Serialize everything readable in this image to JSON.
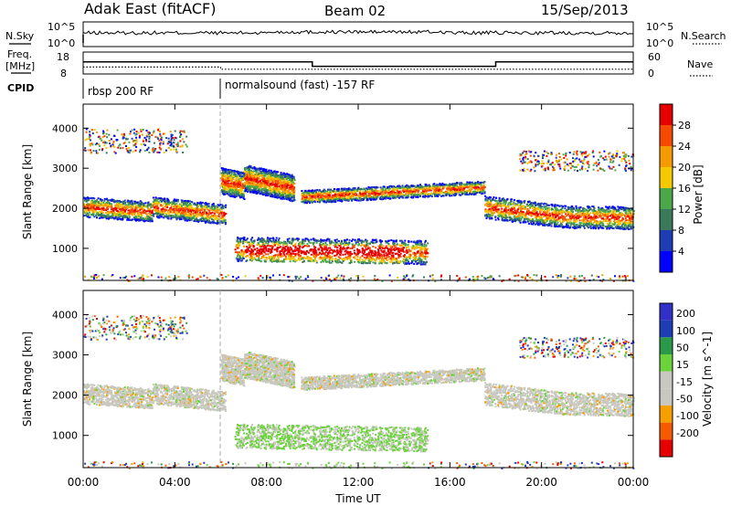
{
  "header": {
    "title": "Adak East (fitACF)",
    "beam": "Beam 02",
    "date": "15/Sep/2013"
  },
  "colors": {
    "power_scale": [
      "#0000ff",
      "#1e3cb4",
      "#3a7a5a",
      "#4aa84a",
      "#f5c800",
      "#f59a00",
      "#f54a00",
      "#e60000"
    ],
    "velocity_scale": [
      "#e60000",
      "#f55a00",
      "#f5a000",
      "#c8c8c0",
      "#c8c8c0",
      "#6ad23a",
      "#2a9a4a",
      "#1e3cb4",
      "#3030c8"
    ]
  },
  "chart_data": [
    {
      "type": "line",
      "name": "noise-panel",
      "left_label": "N.Sky",
      "right_label": "N.Search",
      "left_ticks": [
        "10^5",
        "10^0"
      ],
      "right_ticks": [
        "10^5",
        "10^0"
      ],
      "x_range_hours": [
        0,
        24
      ]
    },
    {
      "type": "line",
      "name": "frequency-panel",
      "left_label_1": "Freq.",
      "left_label_2": "[MHz]",
      "right_label": "Nave",
      "left_ticks": [
        18,
        8
      ],
      "right_ticks": [
        60,
        0
      ],
      "ylim_freq": [
        8,
        18
      ],
      "ylim_nave": [
        0,
        60
      ],
      "freq_steps": [
        {
          "t": 0.0,
          "v": 13.5
        },
        {
          "t": 10.0,
          "v": 13.5
        },
        {
          "t": 10.0,
          "v": 11.5
        },
        {
          "t": 18.0,
          "v": 11.5
        },
        {
          "t": 18.0,
          "v": 13.5
        },
        {
          "t": 24.0,
          "v": 13.5
        }
      ],
      "nave_steps": [
        {
          "t": 0.0,
          "v": 19
        },
        {
          "t": 6.0,
          "v": 19
        },
        {
          "t": 6.0,
          "v": 13
        },
        {
          "t": 24.0,
          "v": 13
        }
      ]
    },
    {
      "type": "table",
      "name": "cpid-panel",
      "label": "CPID",
      "segments": [
        {
          "start_h": 0,
          "end_h": 6,
          "text": "rbsp 200 RF"
        },
        {
          "start_h": 6,
          "end_h": 24,
          "text": "normalsound (fast) -157 RF"
        }
      ]
    },
    {
      "type": "heatmap",
      "name": "power-rti",
      "ylabel": "Slant Range [km]",
      "ylim": [
        200,
        4600
      ],
      "yticks": [
        1000,
        2000,
        3000,
        4000
      ],
      "colorbar_label": "Power [dB]",
      "colorbar_ticks": [
        4,
        8,
        12,
        16,
        20,
        24,
        28
      ],
      "colorbar_range": [
        0,
        30
      ]
    },
    {
      "type": "heatmap",
      "name": "velocity-rti",
      "ylabel": "Slant Range [km]",
      "ylim": [
        200,
        4600
      ],
      "yticks": [
        1000,
        2000,
        3000,
        4000
      ],
      "colorbar_label": "Velocity [m s^-1]",
      "colorbar_ticks": [
        200,
        100,
        50,
        15,
        -15,
        -50,
        -100,
        -200
      ]
    }
  ],
  "x_axis": {
    "label": "Time UT",
    "ticks": [
      "00:00",
      "04:00",
      "08:00",
      "12:00",
      "16:00",
      "20:00",
      "00:00"
    ]
  }
}
